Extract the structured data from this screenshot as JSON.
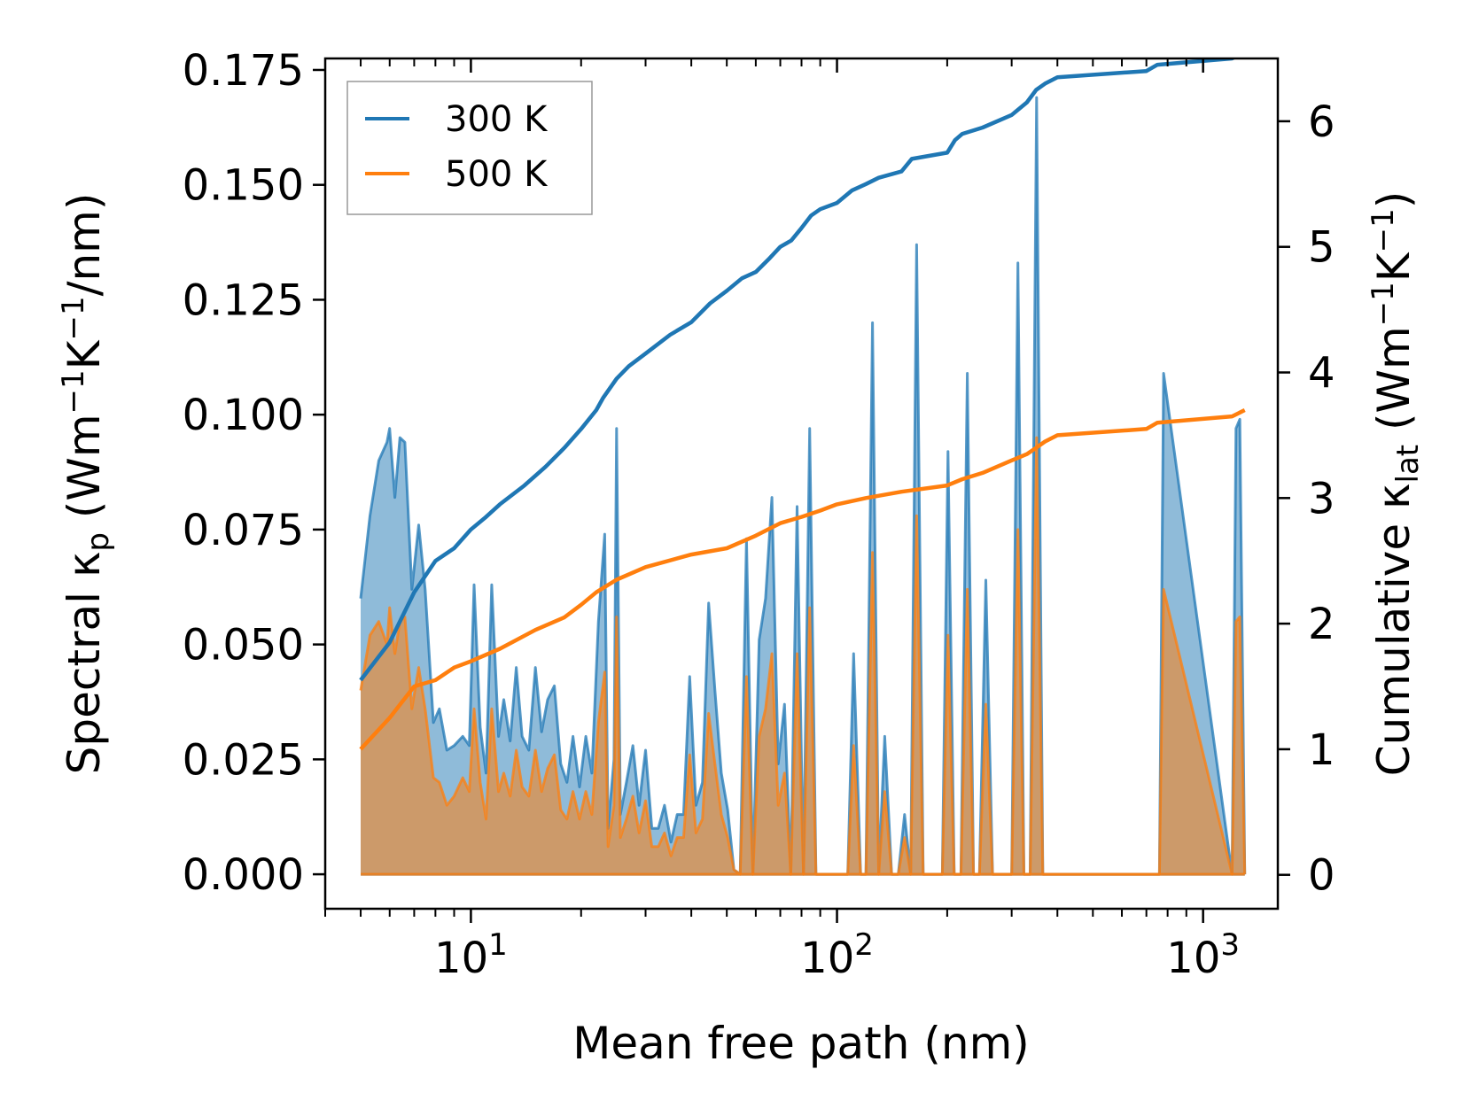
{
  "chart_data": {
    "type": "line",
    "xscale": "log",
    "xlabel": "Mean free path (nm)",
    "ylabel_left": {
      "main": "Spectral κ",
      "sub": "p",
      "rest": " (Wm",
      "sup1": "−1",
      "mid": "K",
      "sup2": "−1",
      "end": "/nm)"
    },
    "ylabel_right": {
      "main": "Cumulative κ",
      "sub": "lat",
      "rest": " (Wm",
      "sup1": "−1",
      "mid": "K",
      "sup2": "−1",
      "end": ")"
    },
    "xlim": [
      4.0,
      1600
    ],
    "ylim_left": [
      -0.0075,
      0.1775
    ],
    "ylim_right": [
      -0.27,
      6.5
    ],
    "x_ticks": [
      {
        "value": 10,
        "base": "10",
        "exp": "1"
      },
      {
        "value": 100,
        "base": "10",
        "exp": "2"
      },
      {
        "value": 1000,
        "base": "10",
        "exp": "3"
      }
    ],
    "y_ticks_left": [
      {
        "value": 0.0,
        "label": "0.000"
      },
      {
        "value": 0.025,
        "label": "0.025"
      },
      {
        "value": 0.05,
        "label": "0.050"
      },
      {
        "value": 0.075,
        "label": "0.075"
      },
      {
        "value": 0.1,
        "label": "0.100"
      },
      {
        "value": 0.125,
        "label": "0.125"
      },
      {
        "value": 0.15,
        "label": "0.150"
      },
      {
        "value": 0.175,
        "label": "0.175"
      }
    ],
    "y_ticks_right": [
      {
        "value": 0,
        "label": "0"
      },
      {
        "value": 1,
        "label": "1"
      },
      {
        "value": 2,
        "label": "2"
      },
      {
        "value": 3,
        "label": "3"
      },
      {
        "value": 4,
        "label": "4"
      },
      {
        "value": 5,
        "label": "5"
      },
      {
        "value": 6,
        "label": "6"
      }
    ],
    "legend": {
      "position": "top-left",
      "entries": [
        {
          "label": "300 K",
          "color": "#1f77b4"
        },
        {
          "label": "500 K",
          "color": "#ff7f0e"
        }
      ]
    },
    "spectral_series": [
      {
        "name": "300 K",
        "color": "#1f77b4",
        "fill_color": "#1f77b4",
        "x": [
          5.0,
          5.3,
          5.6,
          5.9,
          6.0,
          6.2,
          6.4,
          6.6,
          6.9,
          7.2,
          7.5,
          7.9,
          8.2,
          8.6,
          9.0,
          9.5,
          9.9,
          10.2,
          10.6,
          11.0,
          11.4,
          11.9,
          12.3,
          12.8,
          13.3,
          13.8,
          14.4,
          15.0,
          15.6,
          16.2,
          16.9,
          17.6,
          18.3,
          19.0,
          19.8,
          20.6,
          21.4,
          22.3,
          23.2,
          23.7,
          24.6,
          25.0,
          25.6,
          26.6,
          27.7,
          28.8,
          30.0,
          31.2,
          32.5,
          33.8,
          35.2,
          36.6,
          38.1,
          39.6,
          41.2,
          42.9,
          44.6,
          46.4,
          48.3,
          50.3,
          52.3,
          54.4,
          56.6,
          58.9,
          61.3,
          63.8,
          66.4,
          69.1,
          71.9,
          74.8,
          77.8,
          81.0,
          84.2,
          87.6,
          91.2,
          94.9,
          98.7,
          103,
          107,
          111,
          116,
          120,
          125,
          130,
          135,
          141,
          147,
          153,
          159,
          165,
          172,
          179,
          186,
          194,
          201,
          209,
          218,
          227,
          236,
          245,
          255,
          266,
          276,
          288,
          300,
          312,
          324,
          337,
          351,
          365,
          380,
          395,
          411,
          760,
          780,
          1200,
          1230,
          1260,
          1300
        ],
        "y": [
          0.06,
          0.078,
          0.09,
          0.094,
          0.097,
          0.082,
          0.095,
          0.094,
          0.062,
          0.076,
          0.062,
          0.033,
          0.036,
          0.027,
          0.028,
          0.03,
          0.028,
          0.063,
          0.032,
          0.022,
          0.063,
          0.03,
          0.038,
          0.029,
          0.045,
          0.03,
          0.027,
          0.045,
          0.031,
          0.038,
          0.041,
          0.024,
          0.02,
          0.03,
          0.019,
          0.03,
          0.022,
          0.055,
          0.074,
          0.01,
          0.025,
          0.097,
          0.013,
          0.02,
          0.028,
          0.015,
          0.027,
          0.01,
          0.01,
          0.015,
          0.007,
          0.013,
          0.013,
          0.043,
          0.015,
          0.02,
          0.059,
          0.04,
          0.022,
          0.014,
          0.001,
          0.0,
          0.073,
          0.0,
          0.051,
          0.06,
          0.082,
          0.024,
          0.037,
          0.0,
          0.08,
          0.0,
          0.097,
          0.0,
          0.0,
          0.0,
          0.0,
          0.0,
          0.0,
          0.048,
          0.0,
          0.0,
          0.12,
          0.0,
          0.03,
          0.0,
          0.0,
          0.013,
          0.0,
          0.137,
          0.0,
          0.0,
          0.0,
          0.0,
          0.092,
          0.0,
          0.0,
          0.109,
          0.0,
          0.0,
          0.064,
          0.0,
          0.0,
          0.0,
          0.0,
          0.133,
          0.0,
          0.0,
          0.169,
          0.0,
          0.0,
          0.0,
          0.0,
          0.0,
          0.109,
          0.0,
          0.097,
          0.099,
          0.0
        ]
      },
      {
        "name": "500 K",
        "color": "#ff7f0e",
        "fill_color": "#ff7f0e",
        "x": [
          5.0,
          5.3,
          5.6,
          5.9,
          6.0,
          6.2,
          6.4,
          6.6,
          6.9,
          7.2,
          7.5,
          7.9,
          8.2,
          8.6,
          9.0,
          9.5,
          9.9,
          10.2,
          10.6,
          11.0,
          11.4,
          11.9,
          12.3,
          12.8,
          13.3,
          13.8,
          14.4,
          15.0,
          15.6,
          16.2,
          16.9,
          17.6,
          18.3,
          19.0,
          19.8,
          20.6,
          21.4,
          22.3,
          23.2,
          23.7,
          24.6,
          25.0,
          25.6,
          26.6,
          27.7,
          28.8,
          30.0,
          31.2,
          32.5,
          33.8,
          35.2,
          36.6,
          38.1,
          39.6,
          41.2,
          42.9,
          44.6,
          46.4,
          48.3,
          50.3,
          52.3,
          54.4,
          56.6,
          58.9,
          61.3,
          63.8,
          66.4,
          69.1,
          71.9,
          74.8,
          77.8,
          81.0,
          84.2,
          87.6,
          91.2,
          94.9,
          98.7,
          103,
          107,
          111,
          116,
          120,
          125,
          130,
          135,
          141,
          147,
          153,
          159,
          165,
          172,
          179,
          186,
          194,
          201,
          209,
          218,
          227,
          236,
          245,
          255,
          266,
          276,
          288,
          300,
          312,
          324,
          337,
          351,
          365,
          380,
          395,
          411,
          760,
          780,
          1200,
          1230,
          1260,
          1300
        ],
        "y": [
          0.04,
          0.052,
          0.055,
          0.05,
          0.058,
          0.048,
          0.055,
          0.056,
          0.036,
          0.045,
          0.036,
          0.021,
          0.02,
          0.015,
          0.017,
          0.021,
          0.018,
          0.036,
          0.02,
          0.012,
          0.036,
          0.018,
          0.022,
          0.017,
          0.027,
          0.019,
          0.017,
          0.027,
          0.018,
          0.023,
          0.026,
          0.014,
          0.012,
          0.018,
          0.012,
          0.018,
          0.013,
          0.033,
          0.044,
          0.006,
          0.015,
          0.056,
          0.008,
          0.012,
          0.017,
          0.009,
          0.016,
          0.006,
          0.006,
          0.009,
          0.004,
          0.008,
          0.008,
          0.026,
          0.009,
          0.012,
          0.035,
          0.024,
          0.013,
          0.008,
          0.001,
          0.0,
          0.043,
          0.0,
          0.03,
          0.036,
          0.048,
          0.015,
          0.022,
          0.0,
          0.048,
          0.0,
          0.058,
          0.0,
          0.0,
          0.0,
          0.0,
          0.0,
          0.0,
          0.028,
          0.0,
          0.0,
          0.07,
          0.0,
          0.018,
          0.0,
          0.0,
          0.008,
          0.0,
          0.078,
          0.0,
          0.0,
          0.0,
          0.0,
          0.052,
          0.0,
          0.0,
          0.062,
          0.0,
          0.0,
          0.037,
          0.0,
          0.0,
          0.0,
          0.0,
          0.075,
          0.0,
          0.0,
          0.095,
          0.0,
          0.0,
          0.0,
          0.0,
          0.0,
          0.062,
          0.0,
          0.055,
          0.056,
          0.0
        ]
      }
    ],
    "cumulative_series": [
      {
        "name": "300 K cumulative",
        "color": "#1f77b4",
        "x": [
          5.0,
          6.0,
          7.0,
          8.0,
          9.0,
          10,
          11,
          12,
          14,
          16,
          18,
          20,
          22,
          23,
          25,
          27,
          30,
          35,
          40,
          45,
          50,
          55,
          60,
          65,
          70,
          75,
          80,
          85,
          90,
          100,
          110,
          120,
          130,
          150,
          160,
          200,
          210,
          220,
          250,
          300,
          330,
          350,
          370,
          400,
          700,
          750,
          1200,
          1300
        ],
        "y": [
          1.55,
          1.85,
          2.25,
          2.5,
          2.6,
          2.75,
          2.85,
          2.95,
          3.1,
          3.25,
          3.4,
          3.55,
          3.7,
          3.8,
          3.95,
          4.05,
          4.15,
          4.3,
          4.4,
          4.55,
          4.65,
          4.75,
          4.8,
          4.9,
          5.0,
          5.05,
          5.15,
          5.25,
          5.3,
          5.35,
          5.45,
          5.5,
          5.55,
          5.6,
          5.7,
          5.75,
          5.85,
          5.9,
          5.95,
          6.05,
          6.15,
          6.25,
          6.3,
          6.35,
          6.4,
          6.45,
          6.5,
          6.55
        ]
      },
      {
        "name": "500 K cumulative",
        "color": "#ff7f0e",
        "x": [
          5.0,
          6.0,
          7.0,
          8.0,
          9.0,
          10,
          12,
          15,
          18,
          20,
          22,
          25,
          30,
          40,
          50,
          60,
          70,
          80,
          90,
          100,
          120,
          150,
          200,
          220,
          250,
          300,
          330,
          350,
          370,
          400,
          700,
          750,
          1200,
          1300
        ],
        "y": [
          1.0,
          1.25,
          1.5,
          1.55,
          1.65,
          1.7,
          1.8,
          1.95,
          2.05,
          2.15,
          2.25,
          2.35,
          2.45,
          2.55,
          2.6,
          2.7,
          2.8,
          2.85,
          2.9,
          2.95,
          3.0,
          3.05,
          3.1,
          3.15,
          3.2,
          3.3,
          3.35,
          3.4,
          3.45,
          3.5,
          3.55,
          3.6,
          3.65,
          3.7
        ]
      }
    ]
  }
}
